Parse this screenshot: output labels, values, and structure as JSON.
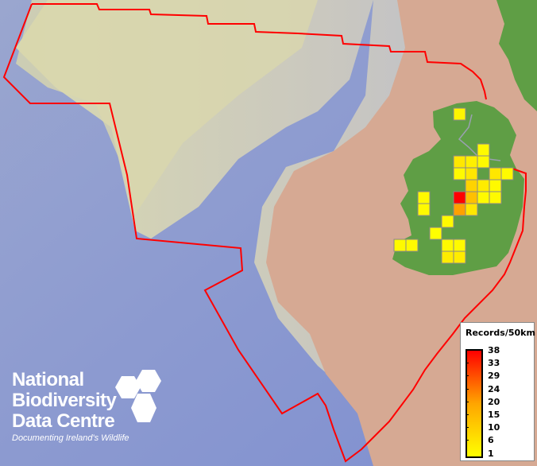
{
  "map": {
    "legend": {
      "title": "Records/50km",
      "ticks": [
        "38",
        "33",
        "29",
        "24",
        "20",
        "15",
        "10",
        "6",
        "1"
      ],
      "colors": {
        "low": "#ffff00",
        "mid": "#ffa500",
        "high": "#ff0000"
      }
    },
    "boundary_color": "#ff0000",
    "grid_cells": [
      {
        "col": 0,
        "row": 0,
        "value": 3
      },
      {
        "col": 2,
        "row": 3,
        "value": 2
      },
      {
        "col": 0,
        "row": 4,
        "value": 6
      },
      {
        "col": 1,
        "row": 4,
        "value": 4
      },
      {
        "col": 2,
        "row": 4,
        "value": 2
      },
      {
        "col": 0,
        "row": 5,
        "value": 2
      },
      {
        "col": 1,
        "row": 5,
        "value": 6
      },
      {
        "col": 3,
        "row": 5,
        "value": 6
      },
      {
        "col": 4,
        "row": 5,
        "value": 2
      },
      {
        "col": 1,
        "row": 6,
        "value": 10
      },
      {
        "col": 2,
        "row": 6,
        "value": 5
      },
      {
        "col": 3,
        "row": 6,
        "value": 2
      },
      {
        "col": -3,
        "row": 7,
        "value": 2
      },
      {
        "col": 0,
        "row": 7,
        "value": 38
      },
      {
        "col": 1,
        "row": 7,
        "value": 14
      },
      {
        "col": 2,
        "row": 7,
        "value": 2
      },
      {
        "col": 3,
        "row": 7,
        "value": 2
      },
      {
        "col": -3,
        "row": 8,
        "value": 2
      },
      {
        "col": 0,
        "row": 8,
        "value": 20
      },
      {
        "col": 1,
        "row": 8,
        "value": 6
      },
      {
        "col": -1,
        "row": 9,
        "value": 2
      },
      {
        "col": -2,
        "row": 10,
        "value": 1
      },
      {
        "col": -5,
        "row": 11,
        "value": 2
      },
      {
        "col": -4,
        "row": 11,
        "value": 2
      },
      {
        "col": -1,
        "row": 11,
        "value": 2
      },
      {
        "col": 0,
        "row": 11,
        "value": 2
      },
      {
        "col": -1,
        "row": 12,
        "value": 5
      },
      {
        "col": 0,
        "row": 12,
        "value": 5
      }
    ]
  },
  "logo": {
    "line1": "National",
    "line2": "Biodiversity",
    "line3": "Data Centre",
    "tagline": "Documenting Ireland's Wildlife"
  }
}
